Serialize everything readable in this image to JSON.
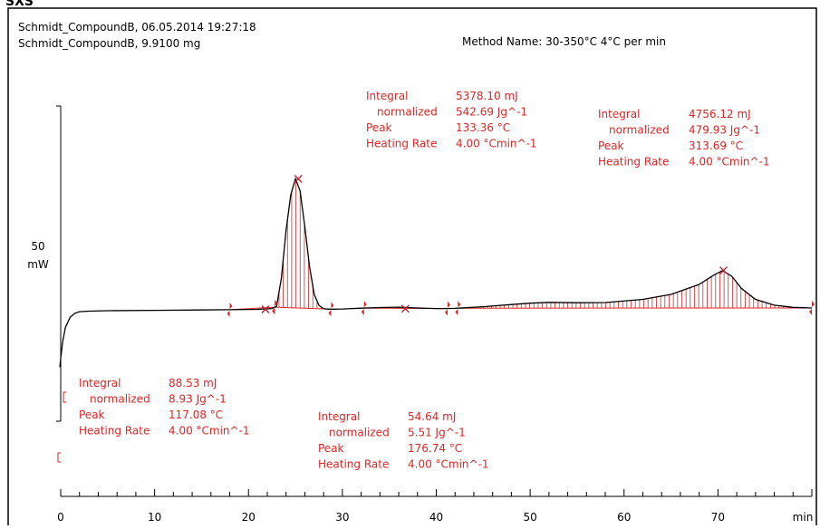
{
  "header": {
    "sheet_tag": "SXS",
    "line1": "Schmidt_CompoundB, 06.05.2014 19:27:18",
    "line2": "Schmidt_CompoundB, 9.9100 mg",
    "method": "Method Name: 30-350°C 4°C per min"
  },
  "colors": {
    "curve": "#000000",
    "annotation": "#e32222",
    "frame": "#000000"
  },
  "chart_data": {
    "type": "line",
    "title": "",
    "xlabel": "min",
    "ylabel_value": "50",
    "ylabel_unit": "mW",
    "xlim": [
      0,
      80
    ],
    "x_ticks": [
      0,
      10,
      20,
      30,
      40,
      50,
      60,
      70
    ],
    "series": [
      {
        "x": [
          -0.1,
          0.0,
          0.2,
          0.5,
          1.0,
          1.5,
          2.0,
          3.0,
          5.0,
          10.0,
          15.0,
          18.0,
          21.0,
          22.5,
          23.0,
          23.5,
          24.0,
          24.5,
          25.0,
          25.5,
          26.0,
          26.5,
          27.0,
          27.5,
          28.0,
          28.5,
          29.0,
          30.0,
          32.0,
          34.0,
          36.0,
          38.0,
          40.0,
          41.0,
          42.0,
          45.0,
          48.0,
          50.0,
          52.0,
          55.0,
          58.0,
          62.0,
          65.0,
          68.0,
          69.5,
          70.5,
          71.5,
          72.5,
          74.0,
          76.0,
          78.0,
          80.0
        ],
        "y": [
          -16.5,
          -12.0,
          -4.0,
          3.5,
          8.5,
          10.5,
          11.3,
          11.6,
          11.8,
          12.0,
          12.2,
          12.3,
          12.5,
          12.9,
          14.0,
          28.0,
          52.0,
          70.0,
          78.0,
          72.0,
          54.0,
          34.0,
          20.0,
          14.5,
          12.8,
          12.6,
          12.6,
          12.7,
          13.1,
          13.4,
          13.6,
          13.2,
          12.9,
          12.9,
          13.0,
          13.8,
          14.9,
          15.6,
          16.0,
          15.8,
          15.9,
          17.5,
          20.0,
          25.0,
          29.5,
          32.0,
          29.0,
          23.0,
          17.5,
          14.6,
          13.5,
          13.2
        ]
      }
    ],
    "peak_marks": [
      {
        "x": 25.3,
        "y": 78.0
      },
      {
        "x": 70.6,
        "y": 32.0
      },
      {
        "x": 36.7,
        "y": 12.8
      },
      {
        "x": 21.8,
        "y": 12.5
      }
    ],
    "integrations": [
      {
        "x_start": 18.0,
        "x_end": 22.8
      },
      {
        "x_start": 22.8,
        "x_end": 28.8
      },
      {
        "x_start": 32.3,
        "x_end": 41.2
      },
      {
        "x_start": 42.3,
        "x_end": 80.0
      }
    ],
    "annotations": [
      {
        "integral": "88.53 mJ",
        "normalized": "8.93 Jg^-1",
        "peak": "117.08 °C",
        "heating_rate": "4.00 °Cmin^-1"
      },
      {
        "integral": "5378.10 mJ",
        "normalized": "542.69 Jg^-1",
        "peak": "133.36 °C",
        "heating_rate": "4.00 °Cmin^-1"
      },
      {
        "integral": "54.64 mJ",
        "normalized": "5.51 Jg^-1",
        "peak": "176.74 °C",
        "heating_rate": "4.00 °Cmin^-1"
      },
      {
        "integral": "4756.12 mJ",
        "normalized": "479.93 Jg^-1",
        "peak": "313.69 °C",
        "heating_rate": "4.00 °Cmin^-1"
      }
    ],
    "annotation_labels": {
      "integral": "Integral",
      "normalized": "normalized",
      "peak": "Peak",
      "heating_rate": "Heating Rate"
    }
  }
}
